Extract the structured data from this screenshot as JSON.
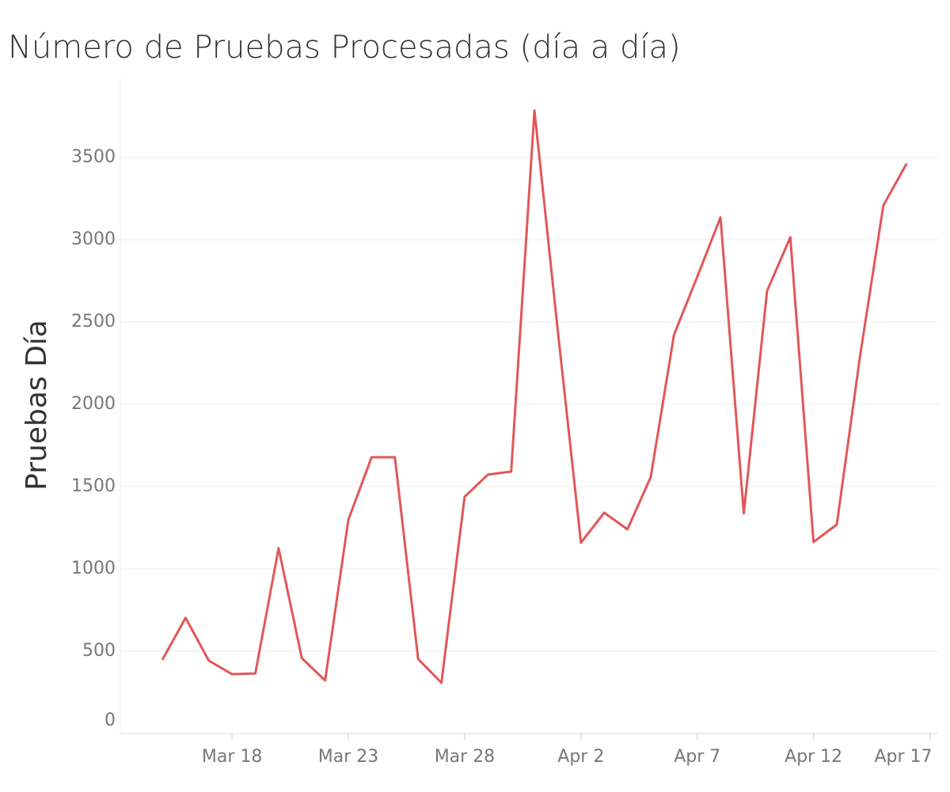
{
  "chart_data": {
    "type": "line",
    "title": "Número de Pruebas Procesadas (día a día)",
    "y_label": "Pruebas Día",
    "categories": [
      null,
      null,
      null,
      "Mar 18",
      null,
      null,
      null,
      null,
      "Mar 23",
      null,
      null,
      null,
      null,
      "Mar 28",
      null,
      null,
      null,
      null,
      "Apr 2",
      null,
      null,
      null,
      null,
      "Apr 7",
      null,
      null,
      null,
      null,
      "Apr 12",
      null,
      null,
      null,
      null,
      "Apr 17"
    ],
    "series": [
      {
        "name": "Pruebas Día",
        "color": "#e15759",
        "values": [
          447,
          702,
          442,
          360,
          365,
          1125,
          457,
          322,
          1298,
          1678,
          1678,
          452,
          308,
          1438,
          1572,
          1591,
          3784,
          2450,
          1159,
          1341,
          1240,
          1558,
          2423,
          2774,
          3135,
          1337,
          2688,
          3014,
          1163,
          1269,
          2293,
          3207,
          3462,
          null
        ]
      }
    ],
    "ylim": [
      0,
      3975
    ],
    "yticks": [
      0,
      500,
      1000,
      1500,
      2000,
      2500,
      3000,
      3500
    ],
    "grid": true
  }
}
